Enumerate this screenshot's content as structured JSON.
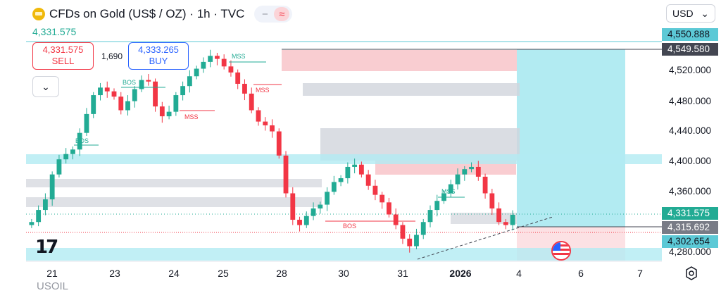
{
  "header": {
    "title": "CFDs on Gold (US$ / OZ) · 1h · TVC",
    "toggle_minus": "−",
    "toggle_wave": "≈",
    "last_price": "4,331.575"
  },
  "trade": {
    "sell_price": "4,331.575",
    "sell_label": "SELL",
    "spread": "1,690",
    "buy_price": "4,333.265",
    "buy_label": "BUY"
  },
  "collapse_glyph": "⌄",
  "currency": {
    "value": "USD",
    "chevron": "⌄"
  },
  "price_axis": {
    "labels": [
      "4,520.000",
      "4,480.000",
      "4,440.000",
      "4,400.000",
      "4,360.000",
      "4,280.000"
    ],
    "tags": [
      {
        "text": "4,550.888",
        "bg": "#5cc9d6",
        "color": "#131722"
      },
      {
        "text": "4,549.580",
        "bg": "#434651",
        "color": "#ffffff"
      },
      {
        "text": "4,331.575",
        "bg": "#22ab94",
        "color": "#ffffff"
      },
      {
        "text": "4,315.692",
        "bg": "#787b86",
        "color": "#ffffff"
      },
      {
        "text": "4,302.654",
        "bg": "#5cc9d6",
        "color": "#131722"
      }
    ]
  },
  "time_axis": [
    "21",
    "23",
    "24",
    "25",
    "28",
    "30",
    "31",
    "2026",
    "4",
    "6",
    "7"
  ],
  "annotations": [
    "BOS",
    "BOS",
    "MSS",
    "MSS",
    "MSS",
    "BOS",
    "MSS"
  ],
  "logo_text": "17",
  "bottom_text": "USOIL",
  "colors": {
    "up": "#22ab94",
    "down": "#f23645",
    "supply": "#f7c1c6",
    "demand": "#d1d4dc",
    "target": "#b2ebf2",
    "stop": "#fbd4d8",
    "accent": "#2962ff"
  },
  "chart_data": {
    "type": "candlestick",
    "y_unit": "USD/oz",
    "ylim": [
      4270,
      4560
    ],
    "series": [
      {
        "close": [
          4322,
          4338,
          4352,
          4385,
          4405,
          4412,
          4418,
          4440,
          4465,
          4490,
          4500,
          4495,
          4488,
          4470,
          4482,
          4498,
          4510,
          4508,
          4475,
          4462,
          4468,
          4490,
          4502,
          4515,
          4525,
          4534,
          4542,
          4538,
          4528,
          4520,
          4505,
          4492,
          4470,
          4455,
          4450,
          4442,
          4410,
          4360,
          4325,
          4318,
          4330,
          4340,
          4345,
          4362,
          4375,
          4380,
          4395,
          4398,
          4385,
          4370,
          4358,
          4348,
          4332,
          4318,
          4300,
          4290,
          4305,
          4322,
          4338,
          4350,
          4360,
          4372,
          4385,
          4392,
          4395,
          4382,
          4360,
          4340,
          4322,
          4318,
          4331.575
        ]
      }
    ]
  }
}
